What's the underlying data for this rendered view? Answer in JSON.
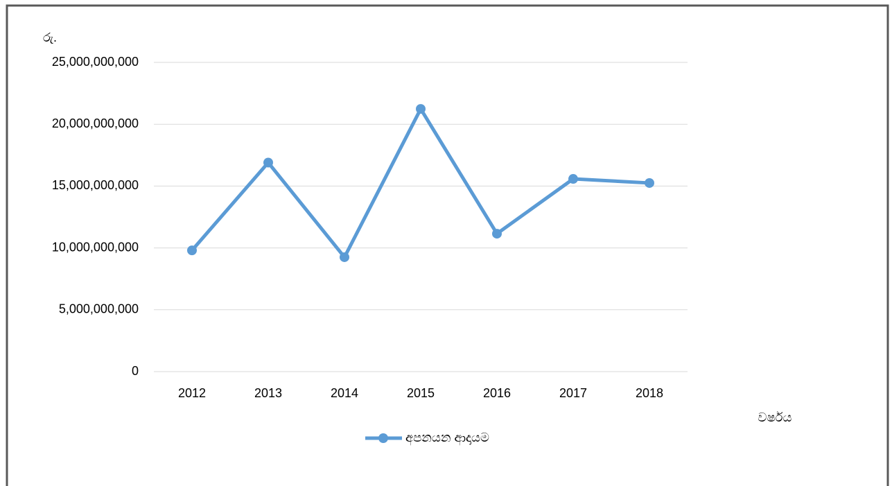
{
  "chart_data": {
    "type": "line",
    "y_axis_label": "රු.",
    "x_axis_label": "වර්ෂය",
    "categories": [
      "2012",
      "2013",
      "2014",
      "2015",
      "2016",
      "2017",
      "2018"
    ],
    "series": [
      {
        "name": "අපනයන ආදායම",
        "color": "#5b9bd5",
        "values": [
          9800000000,
          16900000000,
          9250000000,
          21240000000,
          11150000000,
          15580000000,
          15250000000
        ]
      }
    ],
    "ylim": [
      0,
      25000000000
    ],
    "yticks": [
      0,
      {
        "value": 5000000000,
        "label": "5,000,000,000"
      },
      {
        "value": 10000000000,
        "label": "10,000,000,000"
      },
      {
        "value": 15000000000,
        "label": "15,000,000,000"
      },
      {
        "value": 20000000000,
        "label": "20,000,000,000"
      },
      {
        "value": 25000000000,
        "label": "25,000,000,000"
      }
    ],
    "grid": true,
    "legend": "bottom"
  }
}
